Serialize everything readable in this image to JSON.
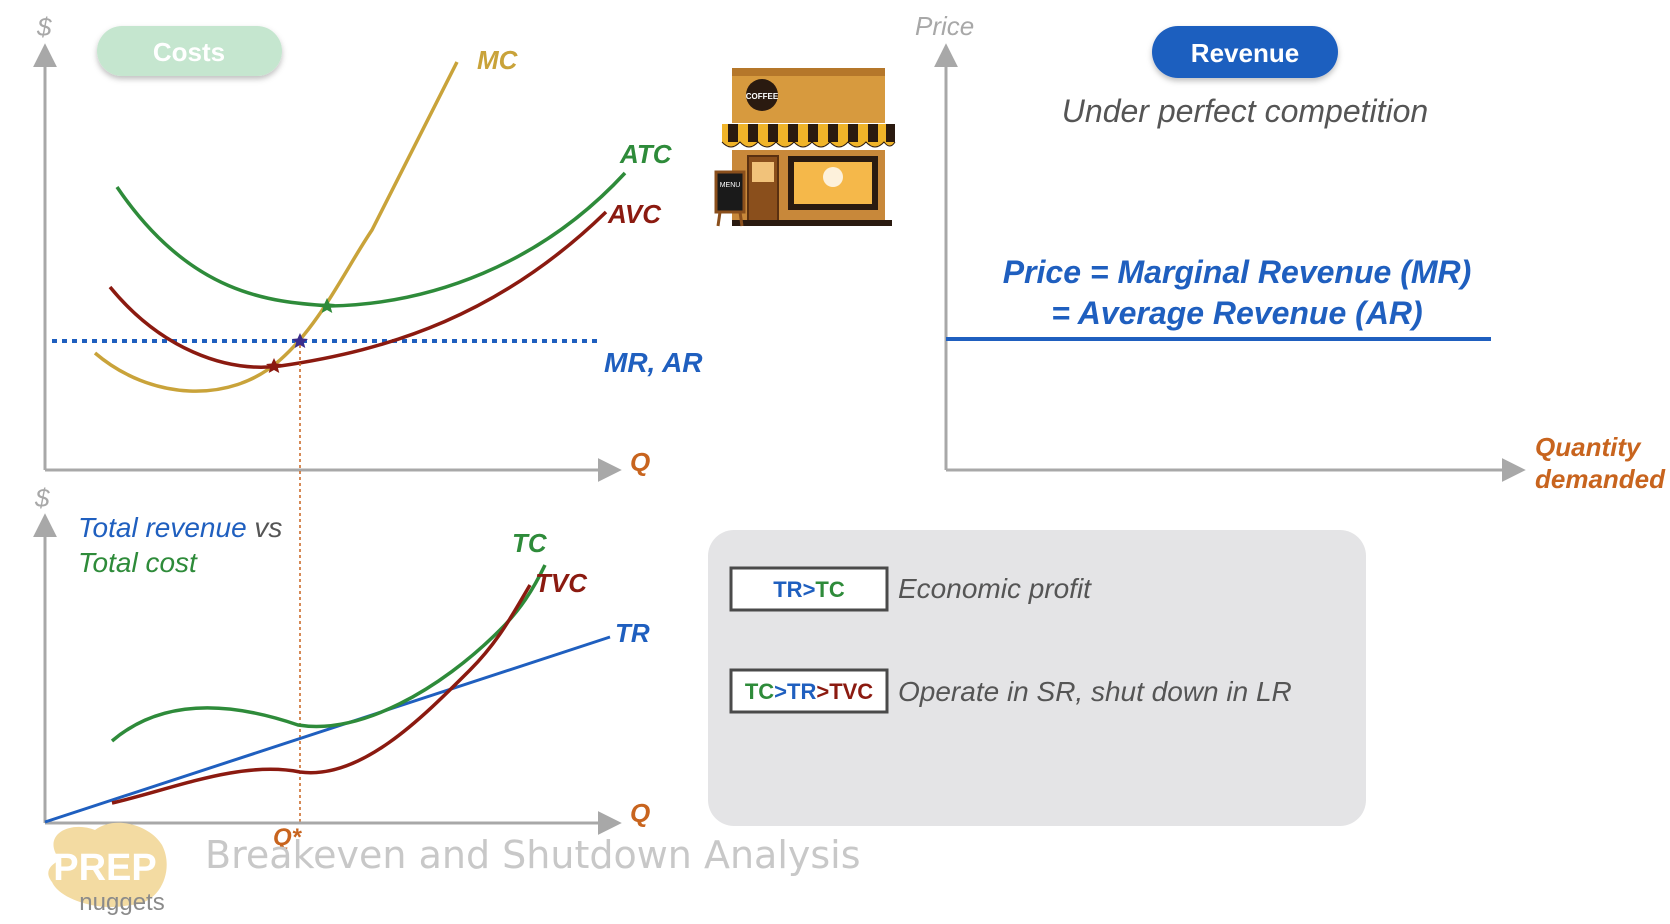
{
  "top_left": {
    "y_axis_label": "$",
    "x_axis_label": "Q",
    "badge": "Costs",
    "curves": {
      "mc": "MC",
      "atc": "ATC",
      "avc": "AVC",
      "mr_ar": "MR, AR"
    }
  },
  "top_right": {
    "y_axis_label": "Price",
    "x_axis_label_line1": "Quantity",
    "x_axis_label_line2": "demanded",
    "badge": "Revenue",
    "subtitle": "Under perfect competition",
    "equation_line1": "Price = Marginal Revenue (MR)",
    "equation_line2": "= Average Revenue (AR)"
  },
  "bottom_left": {
    "y_axis_label": "$",
    "x_axis_label": "Q",
    "title_part1": "Total revenue",
    "title_vs": " vs",
    "title_line2": "Total cost",
    "curves": {
      "tc": "TC",
      "tvc": "TVC",
      "tr": "TR"
    },
    "q_star": "Q*"
  },
  "legend": {
    "item1": {
      "box_tr": "TR",
      "box_op": ">",
      "box_tc": "TC",
      "desc": "Economic profit"
    },
    "item2": {
      "box_tc": "TC",
      "box_op1": ">",
      "box_tr": "TR",
      "box_op2": ">",
      "box_tvc": "TVC",
      "desc": "Operate in SR, shut down in LR"
    }
  },
  "shop": {
    "sign": "COFFEE",
    "menu": "MENU"
  },
  "footer": {
    "logo_top": "PREP",
    "logo_bottom": "nuggets",
    "title": "Breakeven and Shutdown Analysis"
  },
  "colors": {
    "mc": "#c9a33a",
    "atc": "#2e8b3a",
    "avc": "#8b1a10",
    "mr": "#1f5fbf",
    "axis": "#a8a8a8",
    "q_orange": "#c8641e",
    "costs_badge": "#c5e6cf",
    "revenue_badge": "#1f5fbf",
    "legend_bg": "#e4e4e6"
  }
}
